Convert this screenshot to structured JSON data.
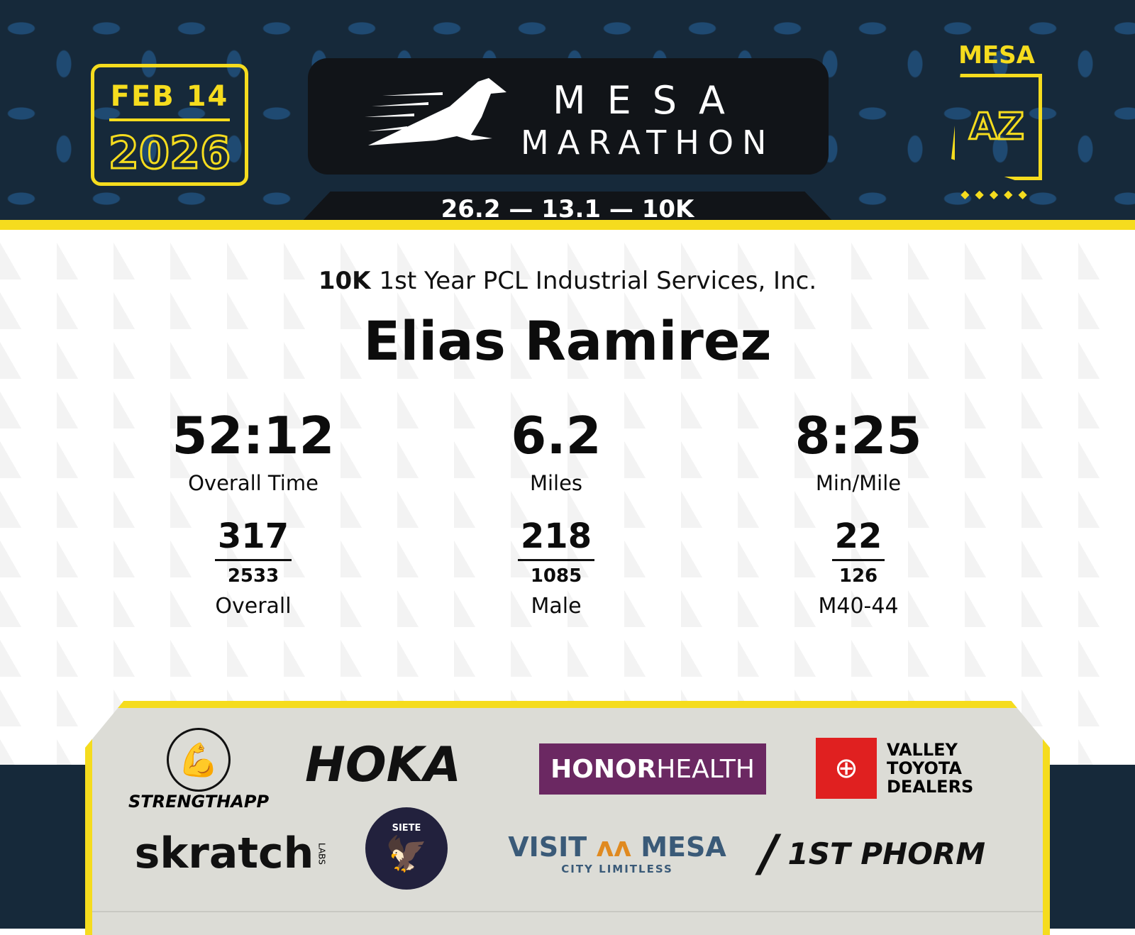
{
  "header": {
    "date": "FEB 14",
    "year": "2026",
    "logo_line1": "MESA",
    "logo_line2": "MARATHON",
    "distances": "26.2 — 13.1 — 10K",
    "state_label": "MESA",
    "state_abbr": "AZ"
  },
  "result": {
    "race": "10K",
    "team": "1st Year PCL Industrial Services, Inc.",
    "name": "Elias Ramirez",
    "stats": [
      {
        "value": "52:12",
        "label": "Overall Time"
      },
      {
        "value": "6.2",
        "label": "Miles"
      },
      {
        "value": "8:25",
        "label": "Min/Mile"
      }
    ],
    "ranks": [
      {
        "place": "317",
        "total": "2533",
        "label": "Overall"
      },
      {
        "place": "218",
        "total": "1085",
        "label": "Male"
      },
      {
        "place": "22",
        "total": "126",
        "label": "M40-44"
      }
    ]
  },
  "sponsors": {
    "strengthapp": "STRENGTHAPP",
    "hoka": "HOKA",
    "honor": "HONOR",
    "health": "HEALTH",
    "toyota": "VALLEY TOYOTA DEALERS",
    "skratch": "skratch",
    "labs": "LABS",
    "siete": "SIETE",
    "visit": "VISIT",
    "mesa": "MESA",
    "city": "CITY LIMITLESS",
    "phorm": "1ST PHORM"
  },
  "colors": {
    "navy": "#16293a",
    "yellow": "#f5dc1e",
    "honor_purple": "#6b2862",
    "toyota_red": "#e02020",
    "visit_blue": "#3a5a78"
  }
}
